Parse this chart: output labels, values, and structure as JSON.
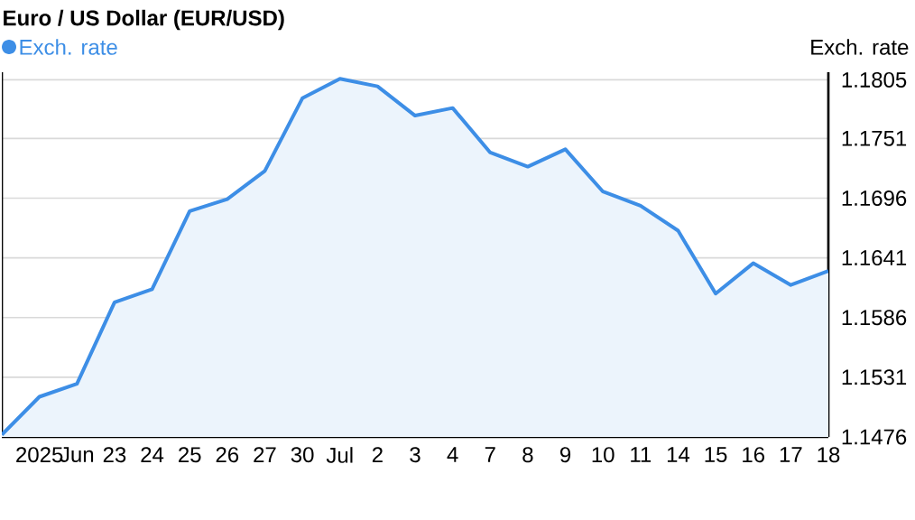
{
  "chart_data": {
    "type": "area",
    "title": "Euro / US Dollar (EUR/USD)",
    "ylabel": "Exch. rate",
    "categories": [
      null,
      "2025",
      "Jun",
      "23",
      "24",
      "25",
      "26",
      "27",
      "30",
      "Jul",
      "2",
      "3",
      "4",
      "7",
      "8",
      "9",
      "10",
      "11",
      "14",
      "15",
      "16",
      "17",
      "18"
    ],
    "series": [
      {
        "name": "Exch. rate",
        "color": "#3d8ee6",
        "values": [
          1.1478,
          1.1513,
          1.1525,
          1.16,
          1.1612,
          1.1684,
          1.1695,
          1.1721,
          1.1788,
          1.1806,
          1.1799,
          1.1772,
          1.1779,
          1.1738,
          1.1725,
          1.1741,
          1.1702,
          1.1689,
          1.1666,
          1.1608,
          1.1636,
          1.1616,
          1.1629
        ]
      }
    ],
    "ylim": [
      1.1476,
      1.1812
    ],
    "yticks": [
      1.1476,
      1.1531,
      1.1586,
      1.1641,
      1.1696,
      1.1751,
      1.1805
    ],
    "grid": "y",
    "legend": "top left",
    "marker": "none",
    "line_style": "solid"
  }
}
